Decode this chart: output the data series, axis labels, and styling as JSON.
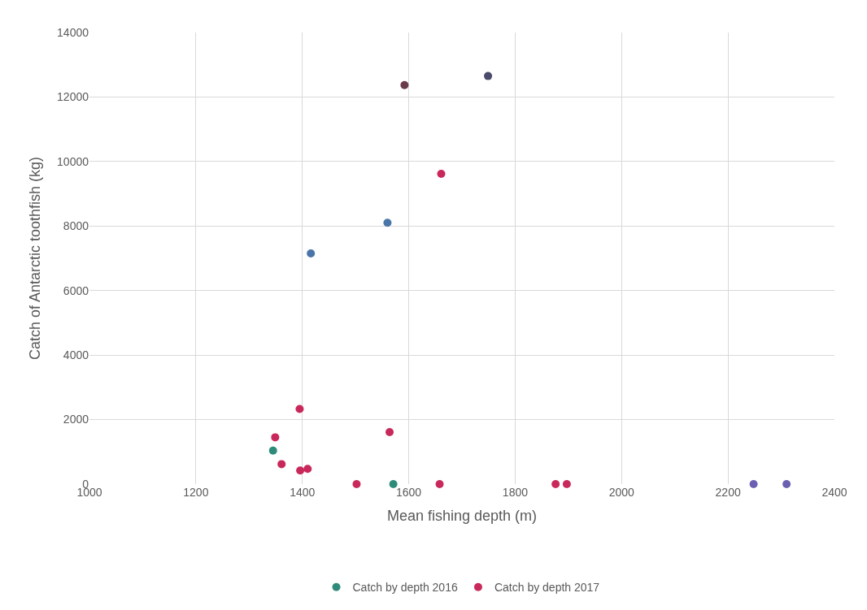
{
  "chart_data": {
    "type": "scatter",
    "xlabel": "Mean fishing depth (m)",
    "ylabel": "Catch of Antarctic toothfish (kg)",
    "xlim": [
      1000,
      2400
    ],
    "xticks": [
      1000,
      1200,
      1400,
      1600,
      1800,
      2000,
      2200,
      2400
    ],
    "ylim": [
      0,
      14000
    ],
    "yticks": [
      0,
      2000,
      4000,
      6000,
      8000,
      10000,
      12000,
      14000
    ],
    "grid": true,
    "legend": "bottom",
    "marker": "circle",
    "series": [
      {
        "name": "Catch by depth 2016",
        "color": "#2e8b7a",
        "x": [
          1345,
          1571,
          1416,
          1560,
          1749,
          2248,
          2310
        ],
        "values": [
          1040,
          0,
          7150,
          8100,
          12650,
          0,
          0
        ],
        "colors": [
          "#2e8b7a",
          "#2e8b7a",
          "#4a75a8",
          "#4a75a8",
          "#4a4a6a",
          "#6a5fb0",
          "#6a5fb0"
        ]
      },
      {
        "name": "Catch by depth 2017",
        "color": "#c8285a",
        "x": [
          1349,
          1361,
          1395,
          1396,
          1410,
          1502,
          1564,
          1592,
          1661,
          1658,
          1876,
          1897
        ],
        "values": [
          1450,
          620,
          2330,
          420,
          470,
          0,
          1610,
          12370,
          9620,
          0,
          0,
          0
        ],
        "colors": [
          "#c8285a",
          "#c8285a",
          "#c8285a",
          "#c8285a",
          "#c8285a",
          "#c8285a",
          "#c8285a",
          "#6b3a4a",
          "#c8285a",
          "#c8285a",
          "#c8285a",
          "#c8285a"
        ]
      }
    ]
  }
}
